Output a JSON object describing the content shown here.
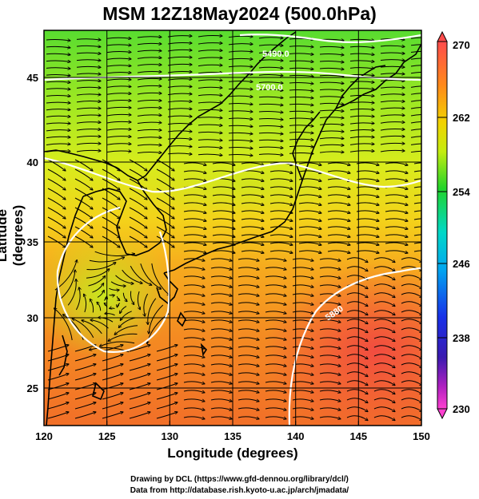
{
  "title": "MSM 12Z18May2024 (500.0hPa)",
  "axes": {
    "xlabel": "Longitude (degrees)",
    "ylabel": "Latitude  (degrees)",
    "x_ticks": [
      "120",
      "125",
      "130",
      "135",
      "140",
      "145",
      "150"
    ],
    "y_ticks": [
      "25",
      "30",
      "35",
      "40",
      "45"
    ],
    "xlim": [
      120,
      150
    ],
    "ylim": [
      22.4,
      47.6
    ]
  },
  "colorbar": {
    "ticks": [
      "270",
      "262",
      "254",
      "246",
      "238",
      "230"
    ],
    "min": 230,
    "max": 270
  },
  "contour_labels": [
    "5490.0",
    "5700.0",
    "5880"
  ],
  "footer": {
    "line1": "Drawing by DCL (https://www.gfd-dennou.org/library/dcl/)",
    "line2": "Data from http://database.rish.kyoto-u.ac.jp/arch/jmadata/"
  }
}
